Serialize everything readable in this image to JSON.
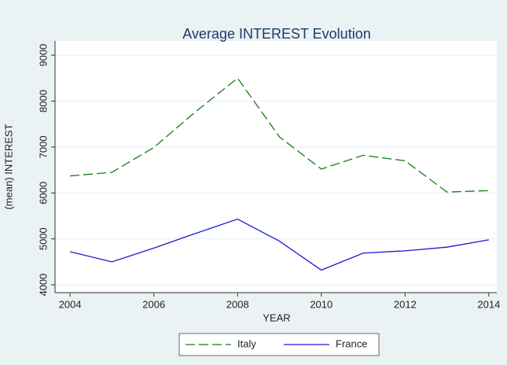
{
  "chart_data": {
    "type": "line",
    "title": "Average INTEREST Evolution",
    "x_label": "YEAR",
    "y_label": "(mean) INTEREST",
    "x": [
      2004,
      2005,
      2006,
      2007,
      2008,
      2009,
      2010,
      2011,
      2012,
      2013,
      2014
    ],
    "series": [
      {
        "name": "Italy",
        "color": "#1a7a1a",
        "dash": true,
        "values": [
          6370,
          6450,
          6990,
          7770,
          8500,
          7220,
          6520,
          6820,
          6700,
          6020,
          6050
        ]
      },
      {
        "name": "France",
        "color": "#1a1ad0",
        "dash": false,
        "values": [
          4720,
          4500,
          4800,
          5120,
          5430,
          4950,
          4320,
          4690,
          4740,
          4820,
          4980
        ]
      }
    ],
    "xlim": [
      2003.64,
      2014.19
    ],
    "ylim": [
      3830,
      9310
    ],
    "xticks": [
      2004,
      2006,
      2008,
      2010,
      2012,
      2014
    ],
    "yticks": [
      4000,
      5000,
      6000,
      7000,
      8000,
      9000
    ],
    "grid": true
  }
}
